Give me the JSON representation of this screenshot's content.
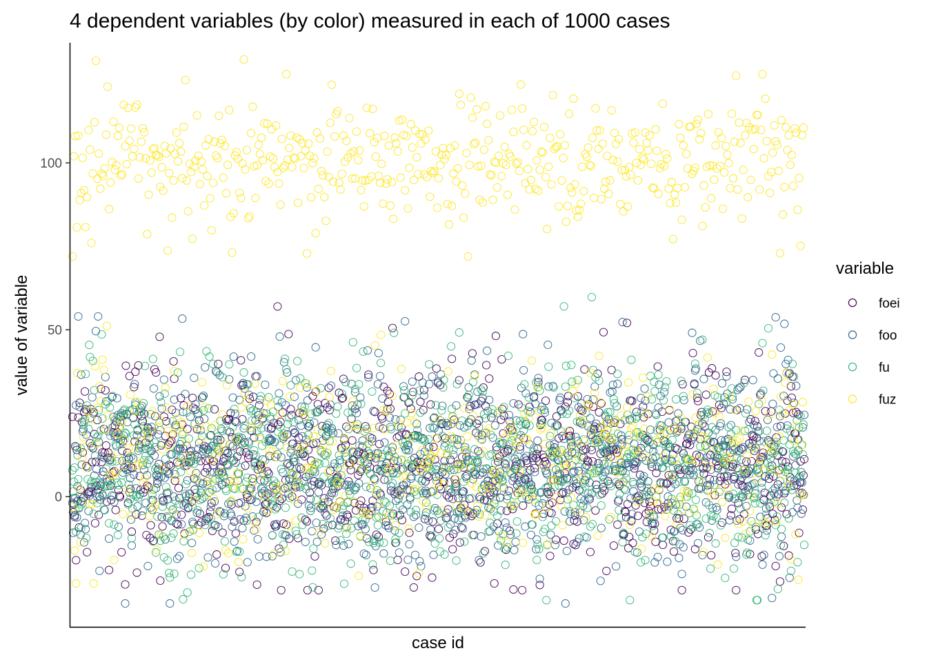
{
  "chart_data": {
    "type": "scatter",
    "title": "4 dependent variables (by color) measured in each of 1000 cases",
    "xlabel": "case id",
    "ylabel": "value of variable",
    "xlim": [
      1,
      1000
    ],
    "ylim": [
      -39,
      136
    ],
    "yticks": [
      0,
      50,
      100
    ],
    "grid": false,
    "legend": {
      "title": "variable",
      "position": "right"
    },
    "n_cases": 1000,
    "marker": "open-circle",
    "series": [
      {
        "name": "foei",
        "color": "#440154",
        "mean": 10,
        "sd": 15,
        "min": -28,
        "max": 57
      },
      {
        "name": "foo",
        "color": "#31688E",
        "mean": 10,
        "sd": 15,
        "min": -32,
        "max": 54
      },
      {
        "name": "fu",
        "color": "#35B779",
        "mean": 10,
        "sd": 15,
        "min": -31,
        "max": 60
      },
      {
        "name": "fuz",
        "color": "#FDE725",
        "mean": 100,
        "sd": 10,
        "min": 72,
        "max": 131
      }
    ],
    "secondary_cluster": {
      "series": "fuz",
      "mean": 10,
      "sd": 15
    }
  }
}
